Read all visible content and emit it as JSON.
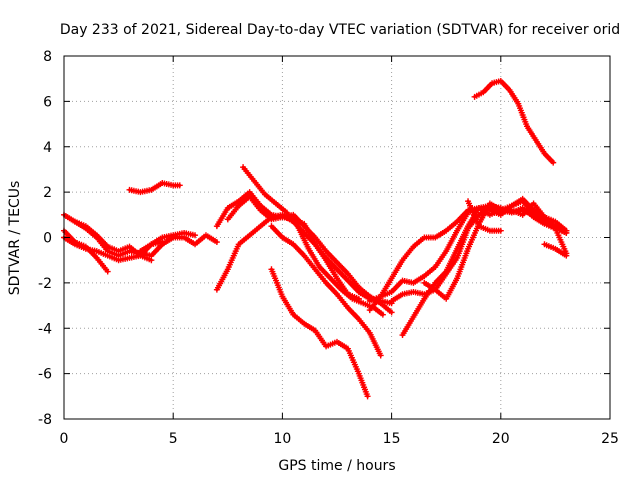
{
  "chart_data": {
    "type": "scatter",
    "title": "Day 233 of 2021, Sidereal Day-to-day VTEC variation (SDTVAR) for receiver orid",
    "xlabel": "GPS time / hours",
    "ylabel": "SDTVAR / TECUs",
    "xlim": [
      0,
      25
    ],
    "ylim": [
      -8,
      8
    ],
    "xticks": [
      0,
      5,
      10,
      15,
      20,
      25
    ],
    "yticks": [
      -8,
      -6,
      -4,
      -2,
      0,
      2,
      4,
      6,
      8
    ],
    "grid": true,
    "marker": "plus",
    "color": "#ff0000",
    "series": [
      {
        "name": "trace-1",
        "x": [
          0.0,
          0.5,
          1.0,
          1.5,
          2.0,
          2.5,
          3.0,
          3.5,
          4.0,
          4.5,
          5.0,
          5.5,
          6.0,
          6.5,
          7.0
        ],
        "y": [
          1.0,
          0.7,
          0.4,
          0.0,
          -0.6,
          -0.8,
          -0.6,
          -0.7,
          -0.8,
          -0.3,
          0.0,
          0.0,
          -0.3,
          0.1,
          -0.2
        ]
      },
      {
        "name": "trace-2",
        "x": [
          0.0,
          0.5,
          1.0,
          1.5,
          2.0
        ],
        "y": [
          0.3,
          -0.2,
          -0.4,
          -0.9,
          -1.5
        ]
      },
      {
        "name": "trace-3",
        "x": [
          0.0,
          0.5,
          1.0,
          1.5,
          2.0,
          2.5,
          3.0,
          3.5,
          4.0,
          4.5
        ],
        "y": [
          0.0,
          -0.3,
          -0.5,
          -0.6,
          -0.8,
          -1.0,
          -0.9,
          -0.8,
          -0.3,
          -0.2
        ]
      },
      {
        "name": "trace-4",
        "x": [
          0.5,
          1.0,
          1.5,
          2.0,
          2.5,
          3.0,
          3.5,
          4.0
        ],
        "y": [
          0.7,
          0.5,
          0.1,
          -0.4,
          -0.6,
          -0.4,
          -0.8,
          -1.0
        ]
      },
      {
        "name": "trace-5",
        "x": [
          3.0,
          3.5,
          4.0,
          4.5,
          5.0,
          5.3
        ],
        "y": [
          2.1,
          2.0,
          2.1,
          2.4,
          2.3,
          2.3
        ]
      },
      {
        "name": "trace-6",
        "x": [
          3.5,
          4.0,
          4.5,
          5.0,
          5.5,
          6.0
        ],
        "y": [
          -0.6,
          -0.3,
          0.0,
          0.1,
          0.2,
          0.1
        ]
      },
      {
        "name": "trace-7",
        "x": [
          7.0,
          7.5,
          8.0,
          8.5,
          9.0,
          9.5,
          10.0,
          10.5,
          11.0,
          11.5,
          12.0,
          12.5,
          13.0,
          13.5,
          14.0,
          14.5,
          15.0
        ],
        "y": [
          -2.3,
          -1.4,
          -0.3,
          0.1,
          0.5,
          0.9,
          1.0,
          0.7,
          0.2,
          -0.3,
          -0.9,
          -1.4,
          -1.9,
          -2.4,
          -2.7,
          -2.8,
          -2.9
        ]
      },
      {
        "name": "trace-8",
        "x": [
          7.0,
          7.5,
          8.0,
          8.5,
          9.0,
          9.5,
          10.0,
          10.5,
          11.0,
          11.5,
          12.0,
          12.5,
          13.0,
          13.5
        ],
        "y": [
          0.5,
          1.3,
          1.6,
          2.0,
          1.4,
          1.0,
          0.9,
          0.8,
          0.6,
          -0.3,
          -1.0,
          -1.8,
          -2.5,
          -2.7
        ]
      },
      {
        "name": "trace-9",
        "x": [
          7.5,
          8.0,
          8.5,
          9.0,
          9.5,
          10.0,
          10.5,
          11.0,
          11.5,
          12.0,
          12.5,
          13.0,
          13.5,
          14.0,
          14.5,
          15.0
        ],
        "y": [
          0.8,
          1.4,
          1.8,
          1.2,
          0.8,
          0.9,
          1.0,
          0.5,
          0.0,
          -0.6,
          -1.1,
          -1.6,
          -2.2,
          -2.6,
          -2.9,
          -3.3
        ]
      },
      {
        "name": "trace-10",
        "x": [
          8.2,
          8.7,
          9.2,
          9.7,
          10.2,
          10.7,
          11.2,
          11.7,
          12.2,
          12.7,
          13.2,
          13.7,
          14.2,
          14.6
        ],
        "y": [
          3.1,
          2.5,
          1.9,
          1.5,
          1.1,
          0.5,
          -0.5,
          -1.3,
          -1.8,
          -2.3,
          -2.7,
          -2.9,
          -3.1,
          -3.4
        ]
      },
      {
        "name": "trace-11",
        "x": [
          9.5,
          10.0,
          10.5,
          11.0,
          11.5,
          12.0,
          12.5,
          13.0,
          13.5,
          14.0,
          14.5
        ],
        "y": [
          0.5,
          0.0,
          -0.3,
          -0.8,
          -1.4,
          -2.0,
          -2.5,
          -3.1,
          -3.6,
          -4.2,
          -5.2
        ]
      },
      {
        "name": "trace-12",
        "x": [
          9.5,
          10.0,
          10.5,
          11.0,
          11.5,
          12.0,
          12.5,
          13.0,
          13.5,
          13.9
        ],
        "y": [
          -1.4,
          -2.6,
          -3.4,
          -3.8,
          -4.1,
          -4.8,
          -4.6,
          -4.9,
          -6.0,
          -7.0
        ]
      },
      {
        "name": "trace-13",
        "x": [
          14.0,
          14.5,
          15.0,
          15.5,
          16.0,
          16.5,
          17.0,
          17.5,
          18.0,
          18.5,
          19.0,
          19.5,
          20.0,
          20.5,
          21.0,
          21.5,
          22.0,
          22.5,
          23.0
        ],
        "y": [
          -2.8,
          -2.6,
          -2.4,
          -1.9,
          -2.0,
          -1.7,
          -1.3,
          -0.6,
          0.3,
          1.1,
          1.3,
          1.0,
          1.2,
          1.1,
          1.3,
          0.9,
          0.6,
          0.4,
          0.2
        ]
      },
      {
        "name": "trace-14",
        "x": [
          14.0,
          14.5,
          15.0,
          15.5,
          16.0,
          16.5,
          17.0,
          17.5,
          18.0,
          18.5,
          19.0,
          19.5,
          20.0,
          20.5,
          21.0,
          21.5,
          22.0,
          22.5,
          23.0
        ],
        "y": [
          -3.2,
          -2.6,
          -1.8,
          -1.0,
          -0.4,
          0.0,
          0.0,
          0.3,
          0.7,
          1.2,
          1.3,
          1.2,
          1.0,
          1.4,
          1.6,
          1.1,
          0.8,
          0.5,
          0.2
        ]
      },
      {
        "name": "trace-15",
        "x": [
          15.5,
          16.0,
          16.5,
          17.0,
          17.5,
          18.0,
          18.5,
          19.0,
          19.5,
          20.0,
          20.5,
          21.0,
          21.5,
          22.0,
          22.5,
          23.0
        ],
        "y": [
          -4.3,
          -3.5,
          -2.7,
          -2.0,
          -1.5,
          -0.5,
          0.5,
          1.3,
          1.4,
          1.3,
          1.1,
          1.2,
          1.0,
          0.7,
          0.4,
          0.3
        ]
      },
      {
        "name": "trace-16",
        "x": [
          15.0,
          15.5,
          16.0,
          16.5,
          17.0,
          17.5,
          18.0,
          18.5,
          19.0,
          19.5,
          20.0,
          20.5,
          21.0,
          21.5,
          22.0,
          22.5,
          23.0
        ],
        "y": [
          -2.8,
          -2.5,
          -2.4,
          -2.5,
          -2.3,
          -1.6,
          -0.9,
          0.4,
          1.0,
          1.3,
          1.1,
          1.2,
          1.0,
          1.5,
          0.9,
          0.4,
          -0.7
        ]
      },
      {
        "name": "trace-17",
        "x": [
          16.5,
          17.0,
          17.5,
          18.0,
          18.5,
          19.0,
          19.5,
          20.0,
          20.5,
          21.0,
          21.5,
          22.0,
          22.5,
          23.0
        ],
        "y": [
          -2.0,
          -2.3,
          -2.7,
          -1.8,
          -0.5,
          0.6,
          1.5,
          1.2,
          1.4,
          1.7,
          1.2,
          0.9,
          0.7,
          0.3
        ]
      },
      {
        "name": "trace-18",
        "x": [
          18.5,
          19.0,
          19.5,
          20.0
        ],
        "y": [
          1.6,
          0.5,
          0.3,
          0.3
        ]
      },
      {
        "name": "trace-19",
        "x": [
          18.8,
          19.2,
          19.6,
          20.0,
          20.4,
          20.8,
          21.2,
          21.6,
          22.0,
          22.4
        ],
        "y": [
          6.2,
          6.4,
          6.8,
          6.9,
          6.5,
          5.9,
          4.9,
          4.3,
          3.7,
          3.3
        ]
      },
      {
        "name": "trace-20",
        "x": [
          22.0,
          22.5,
          23.0
        ],
        "y": [
          -0.3,
          -0.5,
          -0.8
        ]
      }
    ]
  }
}
